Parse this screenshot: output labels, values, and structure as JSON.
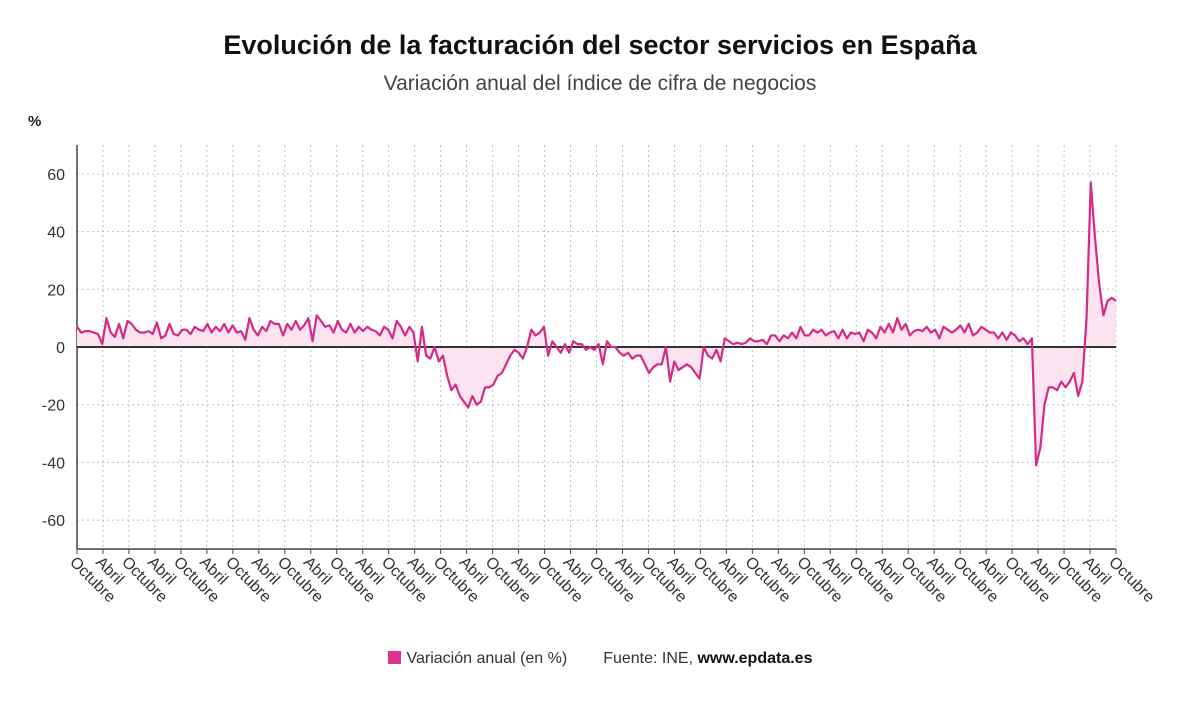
{
  "title": "Evolución de la facturación del sector servicios en España",
  "subtitle": "Variación anual del índice de cifra de negocios",
  "legend_label": "Variación anual (en %)",
  "source_prefix": "Fuente: INE, ",
  "source_url": "www.epdata.es",
  "colors": {
    "line": "#d62a87",
    "fill": "#fbe3f0",
    "grid": "#bfbfbf",
    "zero": "#333333",
    "axis": "#444444"
  },
  "chart_data": {
    "type": "area",
    "ylabel": "%",
    "ylim": [
      -70,
      70
    ],
    "yticks": [
      -60,
      -40,
      -20,
      0,
      20,
      40,
      60
    ],
    "grid": true,
    "legend_position": "bottom",
    "xtick_labels": [
      "Octubre",
      "Abril",
      "Octubre",
      "Abril",
      "Octubre",
      "Abril",
      "Octubre",
      "Abril",
      "Octubre",
      "Abril",
      "Octubre",
      "Abril",
      "Octubre",
      "Abril",
      "Octubre",
      "Abril",
      "Octubre",
      "Abril",
      "Octubre",
      "Abril",
      "Octubre",
      "Abril",
      "Octubre",
      "Abril",
      "Octubre",
      "Abril",
      "Octubre",
      "Abril",
      "Octubre",
      "Abril",
      "Octubre",
      "Abril",
      "Octubre",
      "Abril",
      "Octubre",
      "Abril",
      "Octubre",
      "Abril",
      "Octubre",
      "Abril",
      "Octubre"
    ],
    "series": [
      {
        "name": "Variación anual (en %)",
        "values": [
          7,
          5,
          5.5,
          5.5,
          5,
          4.5,
          1,
          10,
          5,
          3.5,
          8,
          3,
          9,
          8,
          6,
          5,
          5,
          5.5,
          4.5,
          8.5,
          3,
          4,
          8,
          4.5,
          4,
          6,
          6,
          4.5,
          7,
          6,
          5.5,
          8,
          5,
          7,
          5.5,
          8,
          5,
          7.5,
          5,
          5.5,
          2.5,
          10,
          6,
          4,
          7,
          5.5,
          9,
          8,
          8,
          4,
          8,
          6,
          9,
          6,
          7.5,
          10,
          2,
          11,
          9,
          7,
          7.5,
          5,
          9,
          6,
          5,
          8,
          5,
          7,
          5.5,
          7,
          6,
          5.5,
          4,
          7,
          6,
          3,
          9,
          7,
          4,
          7,
          5,
          -5,
          7,
          -3,
          -4,
          0,
          -5,
          -3,
          -10,
          -15,
          -13,
          -17,
          -19,
          -21,
          -17,
          -20,
          -19,
          -14,
          -14,
          -13,
          -10,
          -9,
          -6,
          -3,
          -1,
          -2,
          -4,
          0,
          6,
          4,
          5,
          7,
          -3,
          2,
          0,
          -2,
          1,
          -2,
          2,
          1,
          1,
          -1,
          0,
          -1,
          1,
          -6,
          2,
          0,
          0,
          -2,
          -3,
          -2,
          -4,
          -3,
          -3,
          -6,
          -9,
          -7,
          -6,
          -6,
          0,
          -12,
          -5,
          -8,
          -7,
          -6,
          -7,
          -9,
          -11,
          0,
          -3,
          -4,
          -1,
          -5,
          3,
          2,
          1,
          1.5,
          1,
          1.5,
          3,
          2,
          2,
          2.5,
          1,
          4,
          4,
          2,
          4,
          3,
          5,
          3,
          7,
          4,
          4,
          6,
          5,
          6,
          4,
          5,
          5.5,
          3,
          6,
          3,
          5,
          4.5,
          5,
          2,
          6,
          5,
          3,
          7,
          5,
          8,
          5,
          10,
          6,
          8,
          4,
          5.5,
          6,
          5.5,
          7,
          5,
          6,
          3,
          7,
          6,
          5,
          6,
          7.5,
          5,
          8,
          4,
          5,
          7,
          6,
          5,
          5,
          3,
          5,
          2.5,
          5,
          4,
          2,
          3,
          1,
          3,
          -41,
          -35,
          -20,
          -14,
          -14,
          -15,
          -12,
          -14,
          -12,
          -9,
          -17,
          -12,
          10,
          57,
          38,
          22,
          11,
          16,
          17,
          16
        ]
      }
    ]
  }
}
